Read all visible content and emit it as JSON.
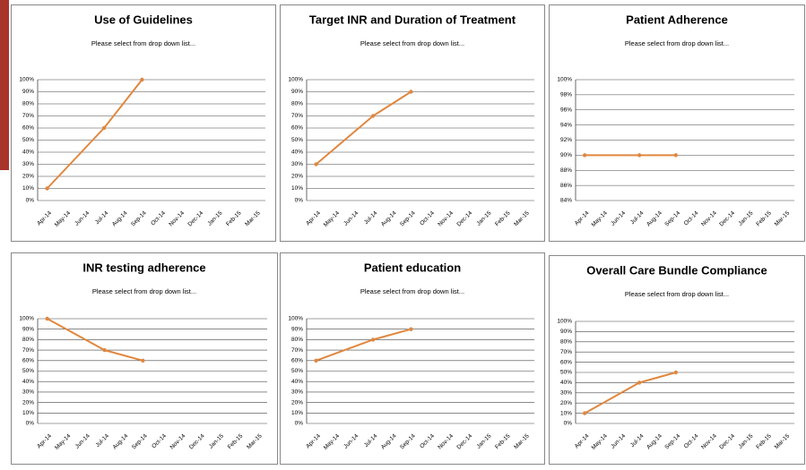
{
  "chart_data": [
    {
      "type": "line",
      "title": "Use of Guidelines",
      "subtitle": "Please select from drop down list...",
      "categories": [
        "Apr-14",
        "May-14",
        "Jun-14",
        "Jul-14",
        "Aug-14",
        "Sep-14",
        "Oct-14",
        "Nov-14",
        "Dec-14",
        "Jan-15",
        "Feb-15",
        "Mar-15"
      ],
      "series": [
        {
          "color": "#e0873f",
          "values": [
            10,
            null,
            null,
            60,
            null,
            100,
            null,
            null,
            null,
            null,
            null,
            null
          ]
        }
      ],
      "ylim": [
        0,
        100
      ],
      "yticks": [
        {
          "value": 0,
          "label": "0%"
        },
        {
          "value": 10,
          "label": "10%"
        },
        {
          "value": 20,
          "label": "20%"
        },
        {
          "value": 30,
          "label": "30%"
        },
        {
          "value": 40,
          "label": "40%"
        },
        {
          "value": 50,
          "label": "50%"
        },
        {
          "value": 60,
          "label": "60%"
        },
        {
          "value": 70,
          "label": "70%"
        },
        {
          "value": 80,
          "label": "80%"
        },
        {
          "value": 90,
          "label": "90%"
        },
        {
          "value": 100,
          "label": "100%"
        }
      ],
      "grid": true,
      "span_gaps": true
    },
    {
      "type": "line",
      "title": "Target INR and Duration of Treatment",
      "subtitle": "Please select from drop down list...",
      "categories": [
        "Apr-14",
        "May-14",
        "Jun-14",
        "Jul-14",
        "Aug-14",
        "Sep-14",
        "Oct-14",
        "Nov-14",
        "Dec-14",
        "Jan-15",
        "Feb-15",
        "Mar-15"
      ],
      "series": [
        {
          "color": "#e0873f",
          "values": [
            30,
            null,
            null,
            70,
            null,
            90,
            null,
            null,
            null,
            null,
            null,
            null
          ]
        }
      ],
      "ylim": [
        0,
        100
      ],
      "yticks": [
        {
          "value": 0,
          "label": "0%"
        },
        {
          "value": 10,
          "label": "10%"
        },
        {
          "value": 20,
          "label": "20%"
        },
        {
          "value": 30,
          "label": "30%"
        },
        {
          "value": 40,
          "label": "40%"
        },
        {
          "value": 50,
          "label": "50%"
        },
        {
          "value": 60,
          "label": "60%"
        },
        {
          "value": 70,
          "label": "70%"
        },
        {
          "value": 80,
          "label": "80%"
        },
        {
          "value": 90,
          "label": "90%"
        },
        {
          "value": 100,
          "label": "100%"
        }
      ],
      "grid": true,
      "span_gaps": true
    },
    {
      "type": "line",
      "title": "Patient Adherence",
      "subtitle": "Please select from drop down list...",
      "categories": [
        "Apr-14",
        "May-14",
        "Jun-14",
        "Jul-14",
        "Aug-14",
        "Sep-14",
        "Oct-14",
        "Nov-14",
        "Dec-14",
        "Jan-15",
        "Feb-15",
        "Mar-15"
      ],
      "series": [
        {
          "color": "#e0873f",
          "values": [
            90,
            null,
            null,
            90,
            null,
            90,
            null,
            null,
            null,
            null,
            null,
            null
          ]
        }
      ],
      "ylim": [
        84,
        100
      ],
      "yticks": [
        {
          "value": 84,
          "label": "84%"
        },
        {
          "value": 86,
          "label": "86%"
        },
        {
          "value": 88,
          "label": "88%"
        },
        {
          "value": 90,
          "label": "90%"
        },
        {
          "value": 92,
          "label": "92%"
        },
        {
          "value": 94,
          "label": "94%"
        },
        {
          "value": 96,
          "label": "96%"
        },
        {
          "value": 98,
          "label": "98%"
        },
        {
          "value": 100,
          "label": "100%"
        }
      ],
      "grid": true,
      "span_gaps": true
    },
    {
      "type": "line",
      "title": "INR testing adherence",
      "subtitle": "Please select from drop down list...",
      "categories": [
        "Apr-14",
        "May-14",
        "Jun-14",
        "Jul-14",
        "Aug-14",
        "Sep-14",
        "Oct-14",
        "Nov-14",
        "Dec-14",
        "Jan-15",
        "Feb-15",
        "Mar-15"
      ],
      "series": [
        {
          "color": "#e0873f",
          "values": [
            100,
            null,
            null,
            70,
            null,
            60,
            null,
            null,
            null,
            null,
            null,
            null
          ]
        }
      ],
      "ylim": [
        0,
        100
      ],
      "yticks": [
        {
          "value": 0,
          "label": "0%"
        },
        {
          "value": 10,
          "label": "10%"
        },
        {
          "value": 20,
          "label": "20%"
        },
        {
          "value": 30,
          "label": "30%"
        },
        {
          "value": 40,
          "label": "40%"
        },
        {
          "value": 50,
          "label": "50%"
        },
        {
          "value": 60,
          "label": "60%"
        },
        {
          "value": 70,
          "label": "70%"
        },
        {
          "value": 80,
          "label": "80%"
        },
        {
          "value": 90,
          "label": "90%"
        },
        {
          "value": 100,
          "label": "100%"
        }
      ],
      "grid": true,
      "span_gaps": true
    },
    {
      "type": "line",
      "title": "Patient education",
      "subtitle": "Please select from drop down list...",
      "categories": [
        "Apr-14",
        "May-14",
        "Jun-14",
        "Jul-14",
        "Aug-14",
        "Sep-14",
        "Oct-14",
        "Nov-14",
        "Dec-14",
        "Jan-15",
        "Feb-15",
        "Mar-15"
      ],
      "series": [
        {
          "color": "#e0873f",
          "values": [
            60,
            null,
            null,
            80,
            null,
            90,
            null,
            null,
            null,
            null,
            null,
            null
          ]
        }
      ],
      "ylim": [
        0,
        100
      ],
      "yticks": [
        {
          "value": 0,
          "label": "0%"
        },
        {
          "value": 10,
          "label": "10%"
        },
        {
          "value": 20,
          "label": "20%"
        },
        {
          "value": 30,
          "label": "30%"
        },
        {
          "value": 40,
          "label": "40%"
        },
        {
          "value": 50,
          "label": "50%"
        },
        {
          "value": 60,
          "label": "60%"
        },
        {
          "value": 70,
          "label": "70%"
        },
        {
          "value": 80,
          "label": "80%"
        },
        {
          "value": 90,
          "label": "90%"
        },
        {
          "value": 100,
          "label": "100%"
        }
      ],
      "grid": true,
      "span_gaps": true
    },
    {
      "type": "line",
      "title": "Overall Care Bundle Compliance",
      "subtitle": "Please select from drop down list...",
      "categories": [
        "Apr-14",
        "May-14",
        "Jun-14",
        "Jul-14",
        "Aug-14",
        "Sep-14",
        "Oct-14",
        "Nov-14",
        "Dec-14",
        "Jan-15",
        "Feb-15",
        "Mar-15"
      ],
      "series": [
        {
          "color": "#e0873f",
          "values": [
            10,
            null,
            null,
            40,
            null,
            50,
            null,
            null,
            null,
            null,
            null,
            null
          ]
        }
      ],
      "ylim": [
        0,
        100
      ],
      "yticks": [
        {
          "value": 0,
          "label": "0%"
        },
        {
          "value": 10,
          "label": "10%"
        },
        {
          "value": 20,
          "label": "20%"
        },
        {
          "value": 30,
          "label": "30%"
        },
        {
          "value": 40,
          "label": "40%"
        },
        {
          "value": 50,
          "label": "50%"
        },
        {
          "value": 60,
          "label": "60%"
        },
        {
          "value": 70,
          "label": "70%"
        },
        {
          "value": 80,
          "label": "80%"
        },
        {
          "value": 90,
          "label": "90%"
        },
        {
          "value": 100,
          "label": "100%"
        }
      ],
      "grid": true,
      "span_gaps": true
    }
  ]
}
